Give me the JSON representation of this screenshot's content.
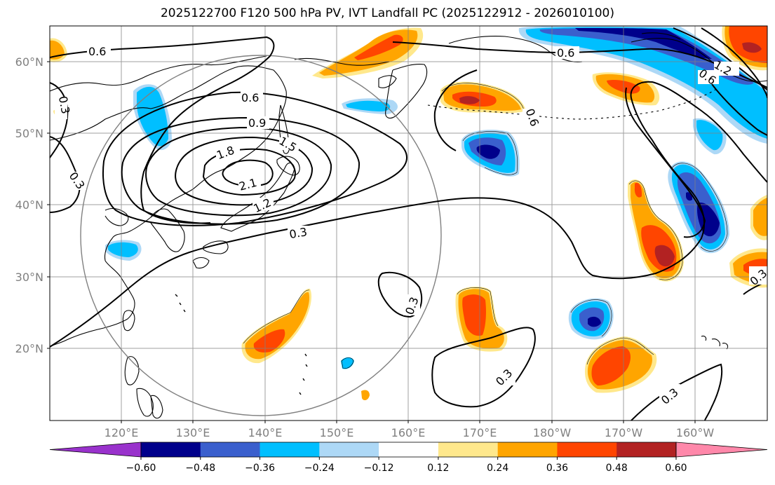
{
  "title": "2025122700 F120 500 hPa PV, IVT Landfall PC (2025122912 - 2026010100)",
  "lat_labels": [
    "60°N",
    "50°N",
    "40°N",
    "30°N",
    "20°N"
  ],
  "lon_labels": [
    "120°E",
    "130°E",
    "140°E",
    "150°E",
    "160°E",
    "170°E",
    "180°W",
    "170°W",
    "160°W"
  ],
  "contour_labels": {
    "c06_nw": "0.6",
    "c06_ne": "0.6",
    "c06_mid": "0.6",
    "c06_east": "0.6",
    "c06_inner": "0.6",
    "c03_w": "0.3",
    "c03_nw": "0.3",
    "c03_main": "0.3",
    "c03_iso": "0.3",
    "c03_s": "0.3",
    "c03_se": "0.3",
    "c03_e": "0.3",
    "c09": "0.9",
    "c12": "1.2",
    "c15": "1.5",
    "c18": "1.8",
    "c21": "2.1",
    "c12_ne": "1.2",
    "c06_ne2": "0.6"
  },
  "colorbar": {
    "ticks": [
      "−0.60",
      "−0.48",
      "−0.36",
      "−0.24",
      "−0.12",
      "0.12",
      "0.24",
      "0.36",
      "0.48",
      "0.60"
    ],
    "colors": [
      "#9932CC",
      "#00008B",
      "#3A5FCD",
      "#00BFFF",
      "#ADD8F6",
      "#FFFFFF",
      "#FFE88C",
      "#FFA500",
      "#FF4500",
      "#B22222",
      "#FF88AA"
    ]
  },
  "colors": {
    "neg_strong": "#00008B",
    "neg_mid": "#3A5FCD",
    "neg_light": "#00BFFF",
    "neg_faint": "#ADD8F6",
    "pos_faint": "#FFE88C",
    "pos_light": "#FFA500",
    "pos_mid": "#FF4500",
    "pos_strong": "#B22222",
    "grid": "#808080",
    "contour": "#000000"
  }
}
